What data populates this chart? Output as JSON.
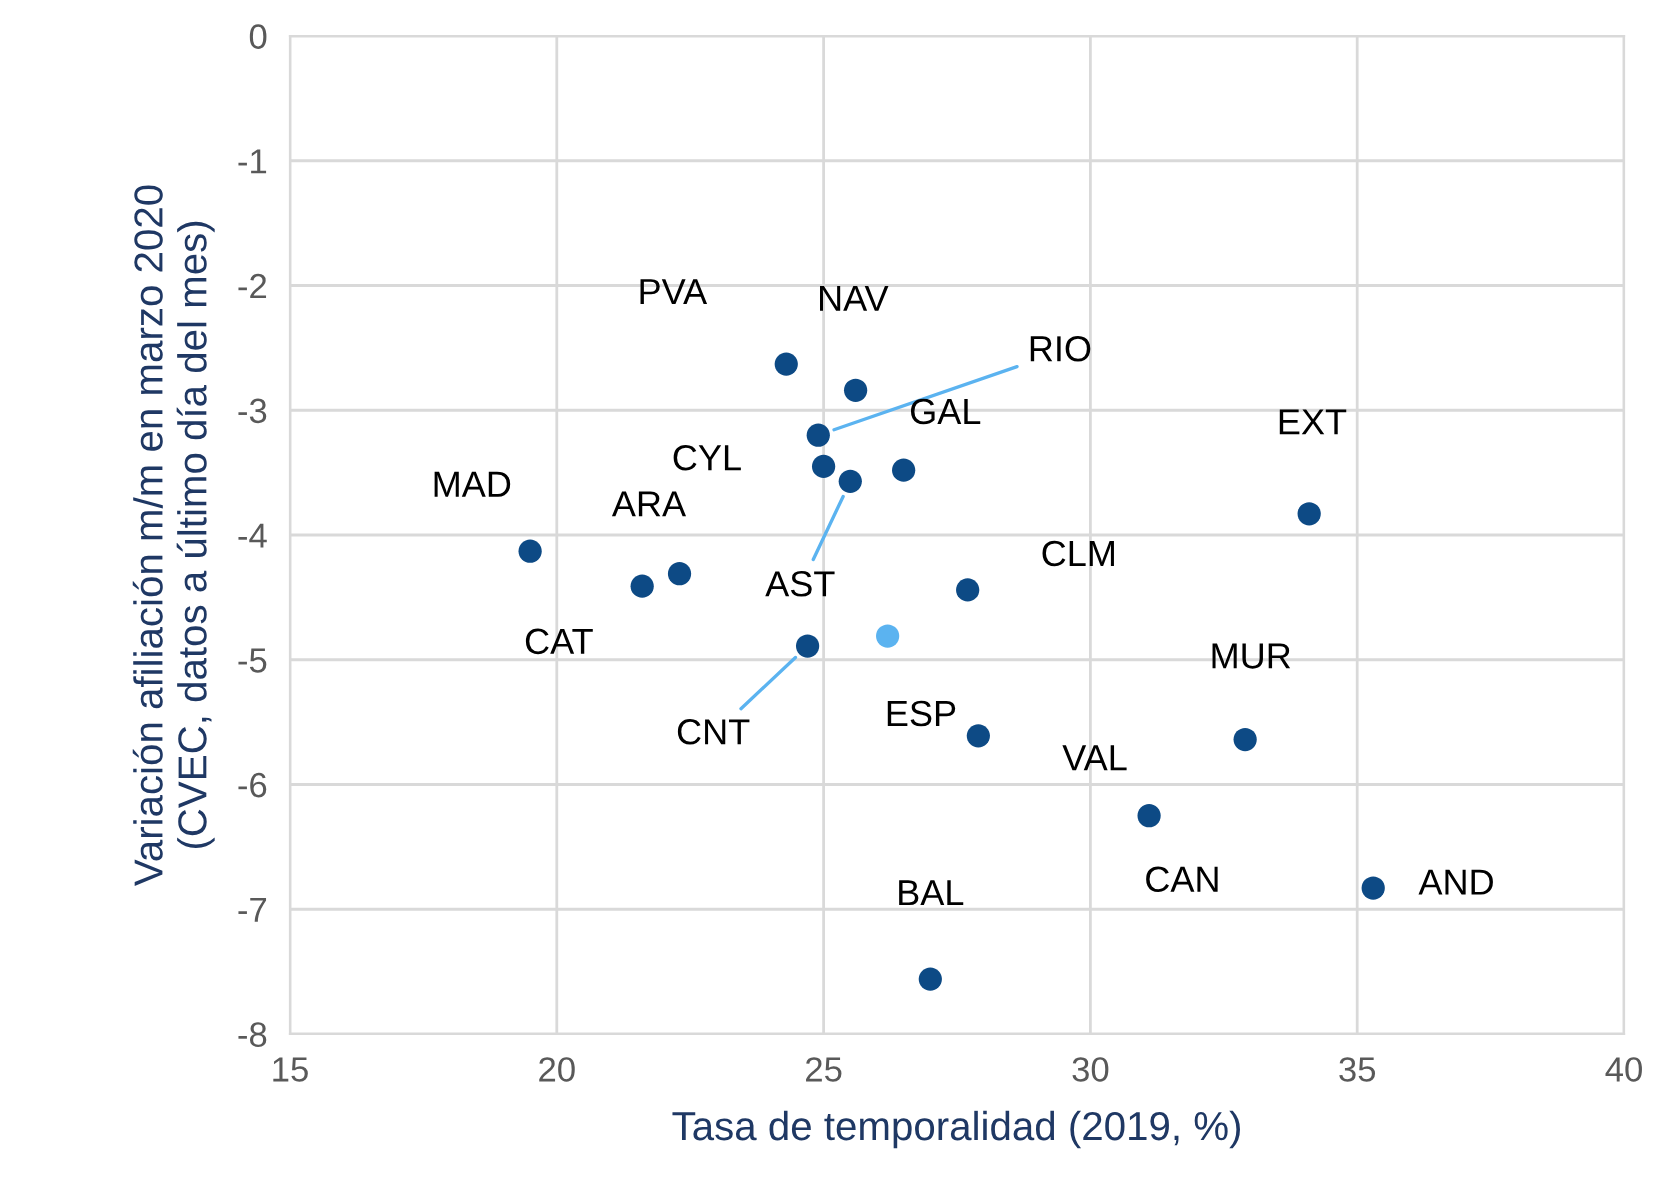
{
  "chart_data": {
    "type": "scatter",
    "xlabel": "Tasa de temporalidad (2019, %)",
    "ylabel": "Variación afiliación m/m en marzo 2020\n(CVEC, datos a último día del mes)",
    "x": [
      24.3,
      25.6,
      24.9,
      25.0,
      25.5,
      26.5,
      34.1,
      19.5,
      22.3,
      21.6,
      27.7,
      24.7,
      26.2,
      27.9,
      32.9,
      31.1,
      35.3,
      27.0
    ],
    "values": [
      -2.63,
      -2.84,
      -3.2,
      -3.45,
      -3.57,
      -3.48,
      -3.83,
      -4.13,
      -4.31,
      -4.41,
      -4.44,
      -4.89,
      -4.81,
      -5.61,
      -5.64,
      -6.25,
      -6.83,
      -7.56
    ],
    "colors": [
      "#0d4a85",
      "#0d4a85",
      "#0d4a85",
      "#0d4a85",
      "#0d4a85",
      "#0d4a85",
      "#0d4a85",
      "#0d4a85",
      "#0d4a85",
      "#0d4a85",
      "#0d4a85",
      "#0d4a85",
      "#5bb3f0",
      "#0d4a85",
      "#0d4a85",
      "#0d4a85",
      "#0d4a85",
      "#0d4a85"
    ],
    "annotations": [
      {
        "text": "PVA",
        "x": 24.3,
        "y": -2.63
      },
      {
        "text": "NAV",
        "x": 25.6,
        "y": -2.84
      },
      {
        "text": "RIO",
        "x": 24.9,
        "y": -3.2
      },
      {
        "text": "CYL",
        "x": 25.0,
        "y": -3.45
      },
      {
        "text": "AST",
        "x": 25.5,
        "y": -3.57
      },
      {
        "text": "GAL",
        "x": 26.5,
        "y": -3.48
      },
      {
        "text": "EXT",
        "x": 34.1,
        "y": -3.83
      },
      {
        "text": "MAD",
        "x": 19.5,
        "y": -4.13
      },
      {
        "text": "ARA",
        "x": 22.3,
        "y": -4.31
      },
      {
        "text": "CAT",
        "x": 21.6,
        "y": -4.41
      },
      {
        "text": "CLM",
        "x": 27.7,
        "y": -4.44
      },
      {
        "text": "CNT",
        "x": 24.7,
        "y": -4.89
      },
      {
        "text": "ESP",
        "x": 26.2,
        "y": -4.81
      },
      {
        "text": "VAL",
        "x": 27.9,
        "y": -5.61
      },
      {
        "text": "MUR",
        "x": 32.9,
        "y": -5.64
      },
      {
        "text": "CAN",
        "x": 31.1,
        "y": -6.25
      },
      {
        "text": "AND",
        "x": 35.3,
        "y": -6.83
      },
      {
        "text": "BAL",
        "x": 27.0,
        "y": -7.56
      }
    ],
    "xlim": [
      15,
      40
    ],
    "xticks": [
      15,
      20,
      25,
      30,
      35,
      40
    ],
    "ylim": [
      -8,
      0
    ],
    "yticks": [
      -8,
      -7,
      -6,
      -5,
      -4,
      -3,
      -2,
      -1,
      0
    ],
    "grid": true,
    "marker": "circle"
  }
}
